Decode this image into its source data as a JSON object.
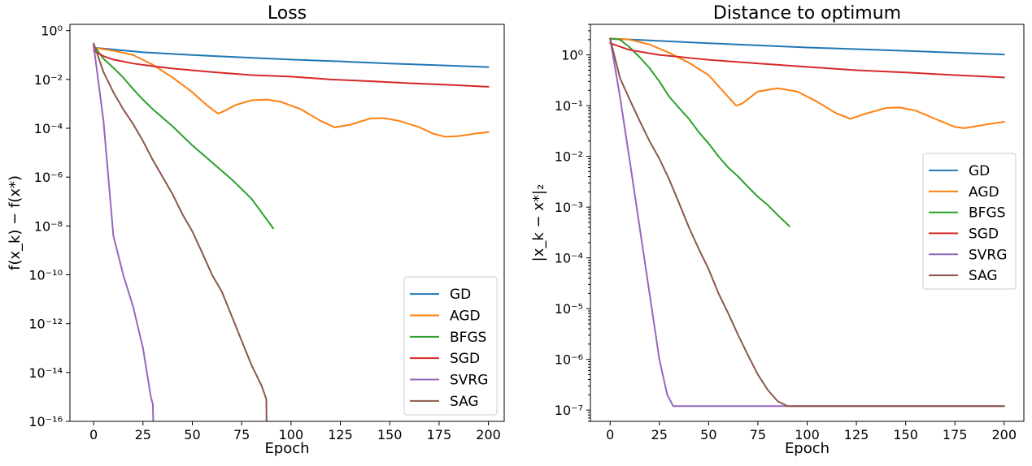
{
  "chart_data": [
    {
      "type": "line",
      "title": "Loss",
      "xlabel": "Epoch",
      "ylabel": "f(x_k) − f(x*)",
      "yscale": "log",
      "xlim": [
        -12,
        208
      ],
      "ylim": [
        1e-16,
        1.8
      ],
      "xticks": [
        0,
        25,
        50,
        75,
        100,
        125,
        150,
        175,
        200
      ],
      "yticks": [
        {
          "exp": -16,
          "label": "10⁻¹⁶"
        },
        {
          "exp": -14,
          "label": "10⁻¹⁴"
        },
        {
          "exp": -12,
          "label": "10⁻¹²"
        },
        {
          "exp": -10,
          "label": "10⁻¹⁰"
        },
        {
          "exp": -8,
          "label": "10⁻⁸"
        },
        {
          "exp": -6,
          "label": "10⁻⁶"
        },
        {
          "exp": -4,
          "label": "10⁻⁴"
        },
        {
          "exp": -2,
          "label": "10⁻²"
        },
        {
          "exp": 0,
          "label": "10⁰"
        }
      ],
      "legend_position": "lower-right",
      "series": [
        {
          "name": "GD",
          "color": "#1f77b4",
          "points": [
            [
              0,
              0.2
            ],
            [
              25,
              0.13
            ],
            [
              50,
              0.1
            ],
            [
              75,
              0.08
            ],
            [
              100,
              0.065
            ],
            [
              125,
              0.055
            ],
            [
              150,
              0.045
            ],
            [
              175,
              0.038
            ],
            [
              200,
              0.032
            ]
          ]
        },
        {
          "name": "AGD",
          "color": "#ff7f0e",
          "points": [
            [
              0,
              0.2
            ],
            [
              10,
              0.15
            ],
            [
              20,
              0.1
            ],
            [
              30,
              0.04
            ],
            [
              40,
              0.012
            ],
            [
              50,
              0.003
            ],
            [
              58,
              0.0008
            ],
            [
              63,
              0.0004
            ],
            [
              66,
              0.0005
            ],
            [
              72,
              0.0009
            ],
            [
              80,
              0.0014
            ],
            [
              88,
              0.0015
            ],
            [
              95,
              0.0012
            ],
            [
              105,
              0.0006
            ],
            [
              115,
              0.0002
            ],
            [
              122,
              0.00011
            ],
            [
              130,
              0.00014
            ],
            [
              140,
              0.00025
            ],
            [
              147,
              0.00026
            ],
            [
              155,
              0.0002
            ],
            [
              165,
              0.00011
            ],
            [
              172,
              6e-05
            ],
            [
              178,
              4.5e-05
            ],
            [
              185,
              4.8e-05
            ],
            [
              193,
              6e-05
            ],
            [
              200,
              7e-05
            ]
          ]
        },
        {
          "name": "BFGS",
          "color": "#2ca02c",
          "points": [
            [
              0,
              0.25
            ],
            [
              5,
              0.07
            ],
            [
              10,
              0.03
            ],
            [
              15,
              0.012
            ],
            [
              20,
              0.004
            ],
            [
              25,
              0.0015
            ],
            [
              30,
              0.0006
            ],
            [
              40,
              0.00012
            ],
            [
              50,
              2e-05
            ],
            [
              60,
              4e-06
            ],
            [
              70,
              8e-07
            ],
            [
              80,
              1.3e-07
            ],
            [
              91,
              8e-09
            ]
          ]
        },
        {
          "name": "SGD",
          "color": "#d62728",
          "points": [
            [
              0,
              0.15
            ],
            [
              5,
              0.09
            ],
            [
              10,
              0.065
            ],
            [
              20,
              0.045
            ],
            [
              30,
              0.035
            ],
            [
              40,
              0.028
            ],
            [
              60,
              0.02
            ],
            [
              80,
              0.015
            ],
            [
              100,
              0.013
            ],
            [
              120,
              0.01
            ],
            [
              140,
              0.0085
            ],
            [
              160,
              0.007
            ],
            [
              180,
              0.006
            ],
            [
              200,
              0.005
            ]
          ]
        },
        {
          "name": "SVRG",
          "color": "#9467bd",
          "points": [
            [
              0,
              0.25
            ],
            [
              5,
              0.0002
            ],
            [
              10,
              4e-09
            ],
            [
              15,
              1e-10
            ],
            [
              20,
              5e-12
            ],
            [
              25,
              1e-13
            ],
            [
              29,
              1e-15
            ],
            [
              30,
              5e-16
            ],
            [
              30.2,
              1e-16
            ]
          ]
        },
        {
          "name": "SAG",
          "color": "#8c564b",
          "points": [
            [
              0,
              0.3
            ],
            [
              5,
              0.02
            ],
            [
              10,
              0.003
            ],
            [
              15,
              0.0006
            ],
            [
              20,
              0.00015
            ],
            [
              25,
              3e-05
            ],
            [
              30,
              5e-06
            ],
            [
              35,
              1e-06
            ],
            [
              40,
              2e-07
            ],
            [
              45,
              3e-08
            ],
            [
              50,
              6e-09
            ],
            [
              55,
              8e-10
            ],
            [
              60,
              1e-10
            ],
            [
              65,
              2e-11
            ],
            [
              70,
              2e-12
            ],
            [
              75,
              2e-13
            ],
            [
              80,
              2e-14
            ],
            [
              85,
              3e-15
            ],
            [
              87.5,
              8e-16
            ],
            [
              87.6,
              1e-16
            ]
          ]
        }
      ]
    },
    {
      "type": "line",
      "title": "Distance to optimum",
      "xlabel": "Epoch",
      "ylabel": "|x_k − x*|₂",
      "yscale": "log",
      "xlim": [
        -10,
        210
      ],
      "ylim": [
        6e-08,
        4
      ],
      "xticks": [
        0,
        25,
        50,
        75,
        100,
        125,
        150,
        175,
        200
      ],
      "yticks": [
        {
          "exp": -7,
          "label": "10⁻⁷"
        },
        {
          "exp": -6,
          "label": "10⁻⁶"
        },
        {
          "exp": -5,
          "label": "10⁻⁵"
        },
        {
          "exp": -4,
          "label": "10⁻⁴"
        },
        {
          "exp": -3,
          "label": "10⁻³"
        },
        {
          "exp": -2,
          "label": "10⁻²"
        },
        {
          "exp": -1,
          "label": "10⁻¹"
        },
        {
          "exp": 0,
          "label": "10⁰"
        }
      ],
      "legend_position": "center-right",
      "series": [
        {
          "name": "GD",
          "color": "#1f77b4",
          "points": [
            [
              0,
              2.1
            ],
            [
              50,
              1.7
            ],
            [
              100,
              1.4
            ],
            [
              150,
              1.2
            ],
            [
              200,
              1.02
            ]
          ]
        },
        {
          "name": "AGD",
          "color": "#ff7f0e",
          "points": [
            [
              0,
              2.1
            ],
            [
              10,
              2.0
            ],
            [
              20,
              1.6
            ],
            [
              30,
              1.1
            ],
            [
              40,
              0.7
            ],
            [
              50,
              0.4
            ],
            [
              58,
              0.18
            ],
            [
              64,
              0.1
            ],
            [
              67,
              0.11
            ],
            [
              75,
              0.19
            ],
            [
              85,
              0.22
            ],
            [
              95,
              0.19
            ],
            [
              105,
              0.12
            ],
            [
              115,
              0.07
            ],
            [
              122,
              0.055
            ],
            [
              130,
              0.07
            ],
            [
              140,
              0.09
            ],
            [
              147,
              0.092
            ],
            [
              155,
              0.08
            ],
            [
              165,
              0.055
            ],
            [
              175,
              0.038
            ],
            [
              180,
              0.036
            ],
            [
              190,
              0.042
            ],
            [
              200,
              0.048
            ]
          ]
        },
        {
          "name": "BFGS",
          "color": "#2ca02c",
          "points": [
            [
              0,
              2.1
            ],
            [
              5,
              2.0
            ],
            [
              10,
              1.4
            ],
            [
              15,
              0.9
            ],
            [
              20,
              0.55
            ],
            [
              25,
              0.3
            ],
            [
              30,
              0.15
            ],
            [
              35,
              0.09
            ],
            [
              40,
              0.055
            ],
            [
              45,
              0.03
            ],
            [
              50,
              0.018
            ],
            [
              55,
              0.01
            ],
            [
              60,
              0.006
            ],
            [
              65,
              0.004
            ],
            [
              70,
              0.0025
            ],
            [
              75,
              0.0016
            ],
            [
              80,
              0.0011
            ],
            [
              85,
              0.0007
            ],
            [
              91,
              0.00042
            ]
          ]
        },
        {
          "name": "SGD",
          "color": "#d62728",
          "points": [
            [
              0,
              1.7
            ],
            [
              10,
              1.25
            ],
            [
              25,
              1.0
            ],
            [
              50,
              0.8
            ],
            [
              75,
              0.68
            ],
            [
              100,
              0.58
            ],
            [
              125,
              0.5
            ],
            [
              150,
              0.45
            ],
            [
              175,
              0.4
            ],
            [
              200,
              0.36
            ]
          ]
        },
        {
          "name": "SVRG",
          "color": "#9467bd",
          "points": [
            [
              0,
              2.1
            ],
            [
              5,
              0.15
            ],
            [
              10,
              0.008
            ],
            [
              15,
              0.0004
            ],
            [
              20,
              2e-05
            ],
            [
              25,
              1e-06
            ],
            [
              29,
              2e-07
            ],
            [
              32,
              1.2e-07
            ],
            [
              200,
              1.2e-07
            ]
          ]
        },
        {
          "name": "SAG",
          "color": "#8c564b",
          "points": [
            [
              0,
              2.1
            ],
            [
              5,
              0.35
            ],
            [
              10,
              0.13
            ],
            [
              15,
              0.05
            ],
            [
              20,
              0.02
            ],
            [
              25,
              0.009
            ],
            [
              30,
              0.0035
            ],
            [
              35,
              0.0012
            ],
            [
              40,
              0.0004
            ],
            [
              45,
              0.00015
            ],
            [
              50,
              6e-05
            ],
            [
              55,
              2e-05
            ],
            [
              60,
              8e-06
            ],
            [
              65,
              3e-06
            ],
            [
              70,
              1.2e-06
            ],
            [
              75,
              5e-07
            ],
            [
              80,
              2.5e-07
            ],
            [
              85,
              1.5e-07
            ],
            [
              90,
              1.2e-07
            ],
            [
              95,
              1.2e-07
            ],
            [
              200,
              1.2e-07
            ]
          ]
        }
      ]
    }
  ]
}
